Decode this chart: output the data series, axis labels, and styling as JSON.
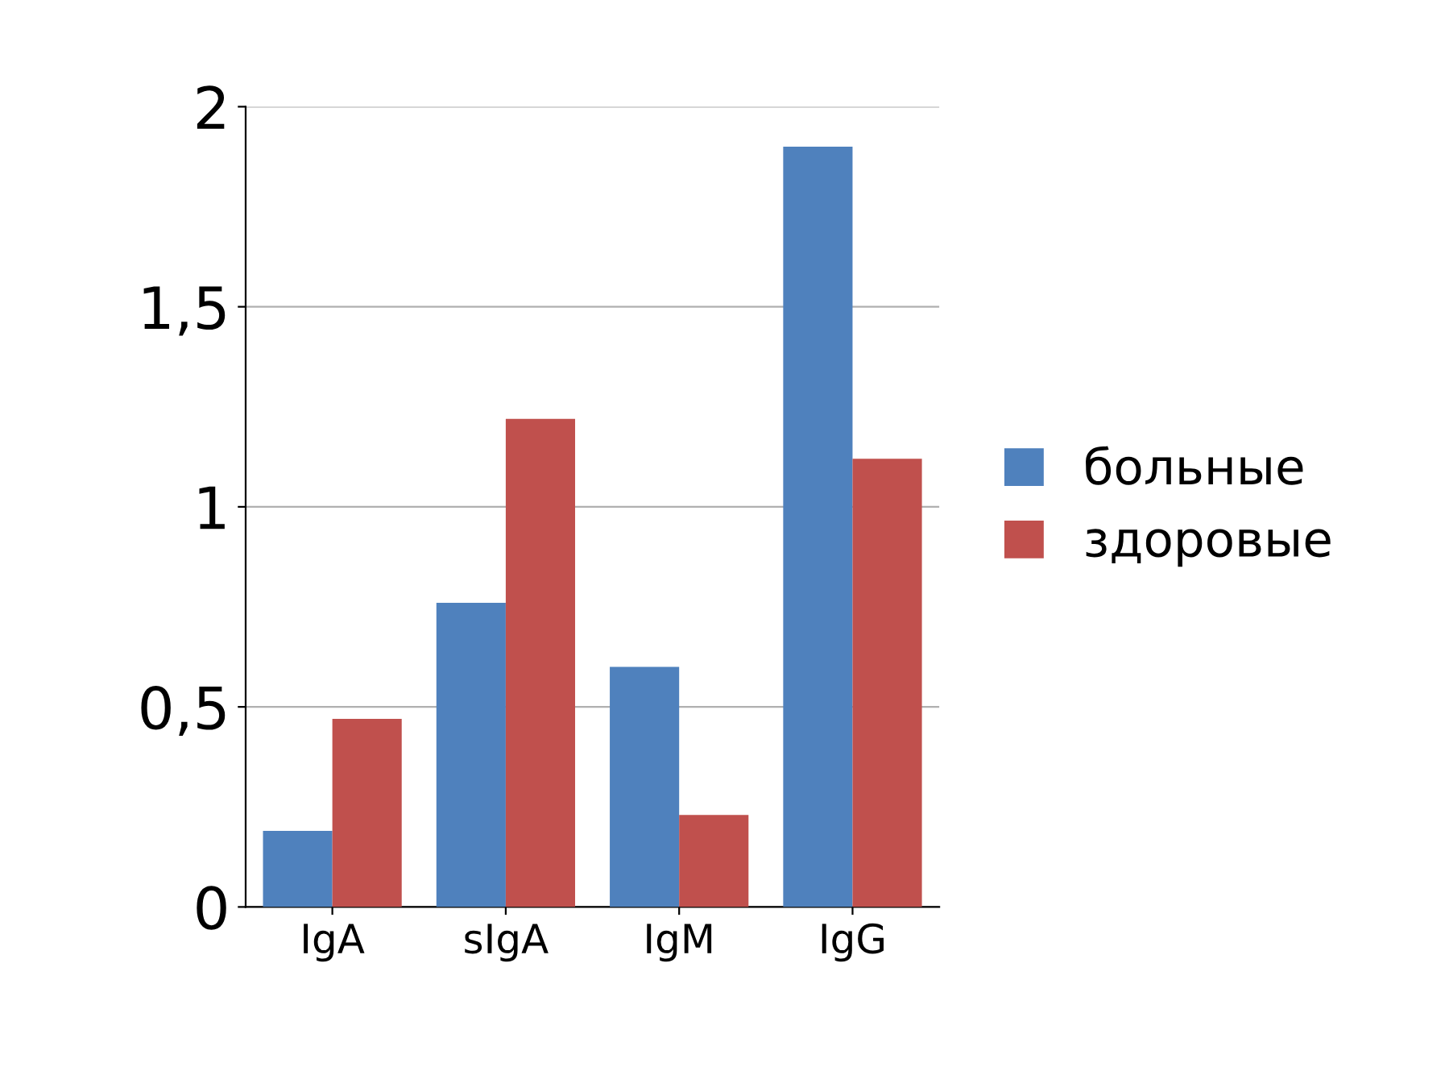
{
  "chart_data": {
    "type": "bar",
    "categories": [
      "IgA",
      "sIgA",
      "IgM",
      "IgG"
    ],
    "series": [
      {
        "name": "больные",
        "color": "#4f81bd",
        "values": [
          0.19,
          0.76,
          0.6,
          1.9
        ]
      },
      {
        "name": "здоровые",
        "color": "#c0504d",
        "values": [
          0.47,
          1.22,
          0.23,
          1.12
        ]
      }
    ],
    "ylim": [
      0,
      2
    ],
    "yticks": [
      0,
      {
        "value": 0.5,
        "label": "0,5"
      },
      1,
      {
        "value": 1.5,
        "label": "1,5"
      },
      2
    ],
    "grid": "y",
    "legend": "right"
  }
}
